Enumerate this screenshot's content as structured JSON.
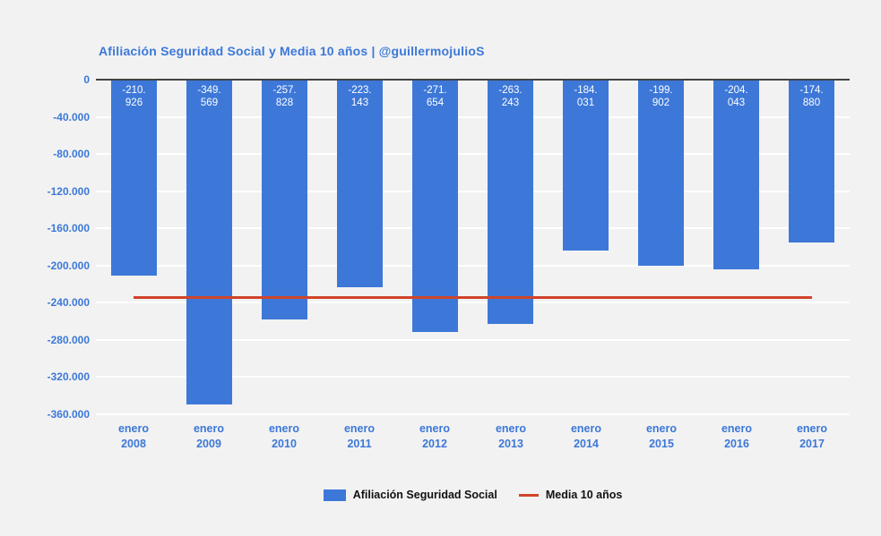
{
  "page": {
    "background_color": "#f2f2f2",
    "accent_color": "#3c78d8",
    "gridline_color": "#ffffff",
    "axis_line_color": "#424242",
    "legend_text_color": "#111111"
  },
  "chart_data": {
    "type": "bar",
    "title": "Afiliación Seguridad Social y Media 10 años | @guillermojulioS",
    "categories": [
      "enero 2008",
      "enero 2009",
      "enero 2010",
      "enero 2011",
      "enero 2012",
      "enero 2013",
      "enero 2014",
      "enero 2015",
      "enero 2016",
      "enero 2017"
    ],
    "series": [
      {
        "name": "Afiliación Seguridad Social",
        "type": "bar",
        "color": "#3d78d8",
        "values": [
          -210926,
          -349569,
          -257828,
          -223143,
          -271654,
          -263243,
          -184031,
          -199902,
          -204043,
          -174880
        ],
        "value_labels": [
          "-210.926",
          "-349.569",
          "-257.828",
          "-223.143",
          "-271.654",
          "-263.243",
          "-184.031",
          "-199.902",
          "-204.043",
          "-174.880"
        ],
        "value_label_color": "#ffffff"
      },
      {
        "name": "Media 10 años",
        "type": "line",
        "color": "#d0442a",
        "value": -233922
      }
    ],
    "xlabel": "",
    "ylabel": "",
    "ylim": [
      -360000,
      0
    ],
    "yticks": [
      0,
      -40000,
      -80000,
      -120000,
      -160000,
      -200000,
      -240000,
      -280000,
      -320000,
      -360000
    ],
    "ytick_labels": [
      "0",
      "-40.000",
      "-80.000",
      "-120.000",
      "-160.000",
      "-200.000",
      "-240.000",
      "-280.000",
      "-320.000",
      "-360.000"
    ],
    "grid": true,
    "legend_position": "bottom"
  }
}
